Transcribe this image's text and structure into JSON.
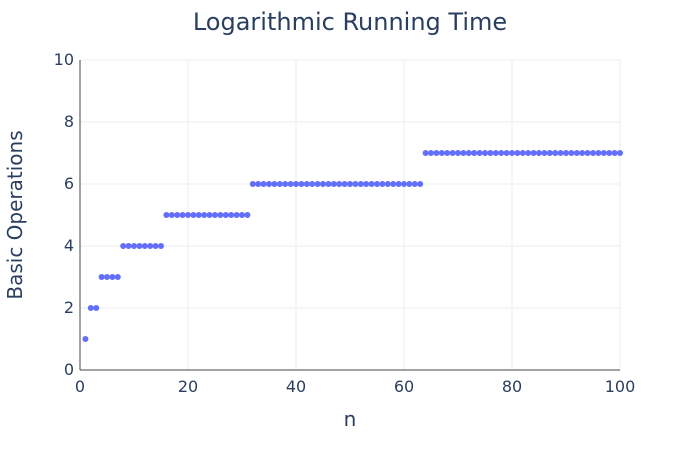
{
  "chart_data": {
    "type": "scatter",
    "title": "Logarithmic Running Time",
    "xlabel": "n",
    "ylabel": "Basic Operations",
    "xlim": [
      0,
      100
    ],
    "ylim": [
      0,
      10
    ],
    "x_ticks": [
      0,
      20,
      40,
      60,
      80,
      100
    ],
    "y_ticks": [
      0,
      2,
      4,
      6,
      8,
      10
    ],
    "grid": true,
    "marker_color": "#636efa",
    "series": [
      {
        "x": [
          1,
          2,
          3,
          4,
          5,
          6,
          7,
          8,
          9,
          10,
          11,
          12,
          13,
          14,
          15,
          16,
          17,
          18,
          19,
          20,
          21,
          22,
          23,
          24,
          25,
          26,
          27,
          28,
          29,
          30,
          31,
          32,
          33,
          34,
          35,
          36,
          37,
          38,
          39,
          40,
          41,
          42,
          43,
          44,
          45,
          46,
          47,
          48,
          49,
          50,
          51,
          52,
          53,
          54,
          55,
          56,
          57,
          58,
          59,
          60,
          61,
          62,
          63,
          64,
          65,
          66,
          67,
          68,
          69,
          70,
          71,
          72,
          73,
          74,
          75,
          76,
          77,
          78,
          79,
          80,
          81,
          82,
          83,
          84,
          85,
          86,
          87,
          88,
          89,
          90,
          91,
          92,
          93,
          94,
          95,
          96,
          97,
          98,
          99,
          100
        ],
        "y": [
          1,
          2,
          2,
          3,
          3,
          3,
          3,
          4,
          4,
          4,
          4,
          4,
          4,
          4,
          4,
          5,
          5,
          5,
          5,
          5,
          5,
          5,
          5,
          5,
          5,
          5,
          5,
          5,
          5,
          5,
          5,
          6,
          6,
          6,
          6,
          6,
          6,
          6,
          6,
          6,
          6,
          6,
          6,
          6,
          6,
          6,
          6,
          6,
          6,
          6,
          6,
          6,
          6,
          6,
          6,
          6,
          6,
          6,
          6,
          6,
          6,
          6,
          6,
          7,
          7,
          7,
          7,
          7,
          7,
          7,
          7,
          7,
          7,
          7,
          7,
          7,
          7,
          7,
          7,
          7,
          7,
          7,
          7,
          7,
          7,
          7,
          7,
          7,
          7,
          7,
          7,
          7,
          7,
          7,
          7,
          7,
          7,
          7,
          7,
          7
        ]
      }
    ]
  }
}
